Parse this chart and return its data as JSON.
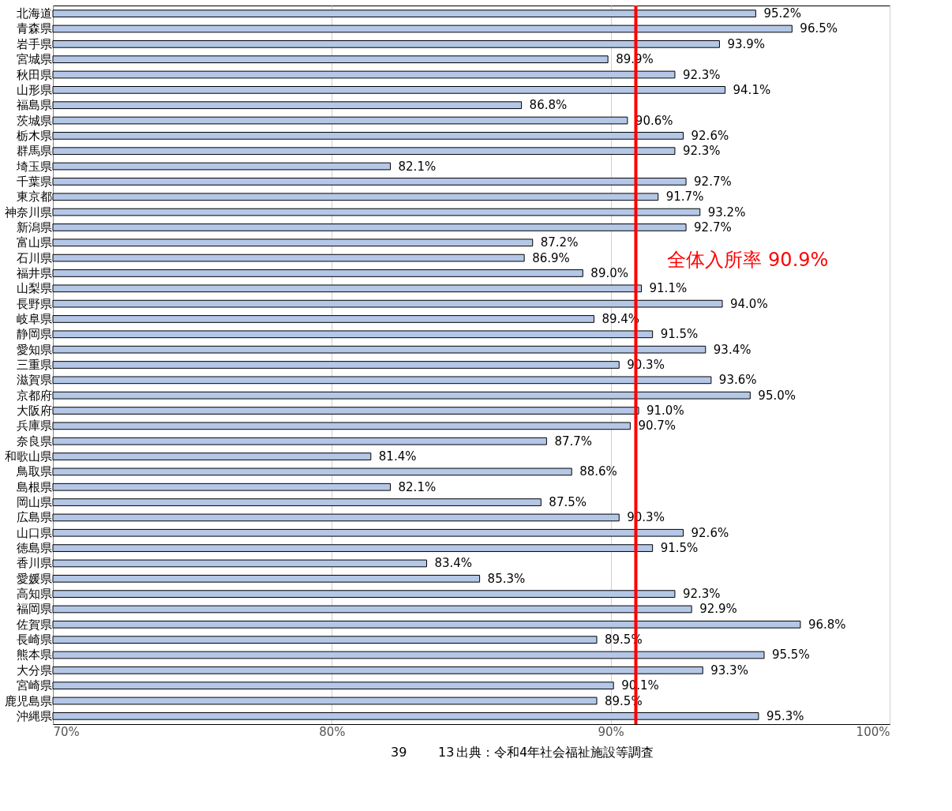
{
  "chart_data": {
    "type": "bar",
    "orientation": "horizontal",
    "categories": [
      "北海道",
      "青森県",
      "岩手県",
      "宮城県",
      "秋田県",
      "山形県",
      "福島県",
      "茨城県",
      "栃木県",
      "群馬県",
      "埼玉県",
      "千葉県",
      "東京都",
      "神奈川県",
      "新潟県",
      "富山県",
      "石川県",
      "福井県",
      "山梨県",
      "長野県",
      "岐阜県",
      "静岡県",
      "愛知県",
      "三重県",
      "滋賀県",
      "京都府",
      "大阪府",
      "兵庫県",
      "奈良県",
      "和歌山県",
      "鳥取県",
      "島根県",
      "岡山県",
      "広島県",
      "山口県",
      "徳島県",
      "香川県",
      "愛媛県",
      "高知県",
      "福岡県",
      "佐賀県",
      "長崎県",
      "熊本県",
      "大分県",
      "宮崎県",
      "鹿児島県",
      "沖縄県"
    ],
    "values": [
      95.2,
      96.5,
      93.9,
      89.9,
      92.3,
      94.1,
      86.8,
      90.6,
      92.6,
      92.3,
      82.1,
      92.7,
      91.7,
      93.2,
      92.7,
      87.2,
      86.9,
      89.0,
      91.1,
      94.0,
      89.4,
      91.5,
      93.4,
      90.3,
      93.6,
      95.0,
      91.0,
      90.7,
      87.7,
      81.4,
      88.6,
      82.1,
      87.5,
      90.3,
      92.6,
      91.5,
      83.4,
      85.3,
      92.3,
      92.9,
      96.8,
      89.5,
      95.5,
      93.3,
      90.1,
      89.5,
      95.3
    ],
    "value_labels": [
      "95.2%",
      "96.5%",
      "93.9%",
      "89.9%",
      "92.3%",
      "94.1%",
      "86.8%",
      "90.6%",
      "92.6%",
      "92.3%",
      "82.1%",
      "92.7%",
      "91.7%",
      "93.2%",
      "92.7%",
      "87.2%",
      "86.9%",
      "89.0%",
      "91.1%",
      "94.0%",
      "89.4%",
      "91.5%",
      "93.4%",
      "90.3%",
      "93.6%",
      "95.0%",
      "91.0%",
      "90.7%",
      "87.7%",
      "81.4%",
      "88.6%",
      "82.1%",
      "87.5%",
      "90.3%",
      "92.6%",
      "91.5%",
      "83.4%",
      "85.3%",
      "92.3%",
      "92.9%",
      "96.8%",
      "89.5%",
      "95.5%",
      "93.3%",
      "90.1%",
      "89.5%",
      "95.3%"
    ],
    "color": "#b4c7e7",
    "xlim": [
      70,
      100
    ],
    "xticks": [
      {
        "value": 70,
        "label": "70%"
      },
      {
        "value": 80,
        "label": "80%"
      },
      {
        "value": 90,
        "label": "90%"
      },
      {
        "value": 100,
        "label": "100%"
      }
    ],
    "grid": "x",
    "legend": false,
    "ref_lines": [
      {
        "axis": "x",
        "value": 90.9,
        "label": "全体入所率  90.9%",
        "color": "#ff0000"
      }
    ],
    "annotations": [
      "39",
      "13",
      "出典：令和4年社会福祉施設等調査"
    ]
  }
}
